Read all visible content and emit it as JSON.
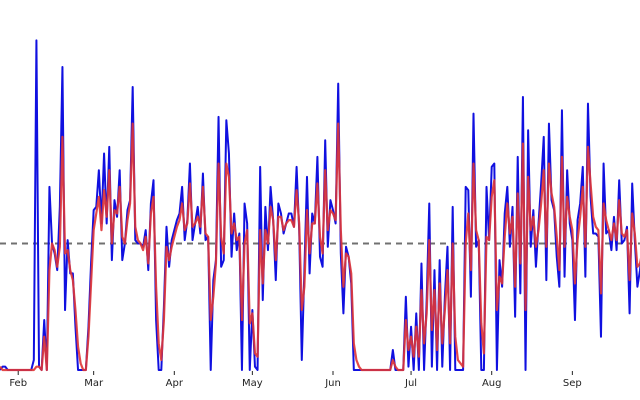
{
  "chart_data": {
    "type": "line",
    "title": "",
    "xlabel": "",
    "ylabel": "",
    "x_axis": {
      "start_date": "2020-01-25",
      "end_date": "2020-09-27",
      "tick_labels": [
        "Feb",
        "Mar",
        "Apr",
        "May",
        "Jun",
        "Jul",
        "Aug",
        "Sep"
      ],
      "tick_dates": [
        "2020-02-01",
        "2020-03-01",
        "2020-04-01",
        "2020-05-01",
        "2020-06-01",
        "2020-07-01",
        "2020-08-01",
        "2020-09-01"
      ]
    },
    "ylim": [
      0,
      100
    ],
    "grid": false,
    "legend": "none",
    "reference_line": {
      "value": 38,
      "style": "dashed",
      "color": "#707070"
    },
    "series": [
      {
        "color": "#1010e0",
        "x_start": "2020-01-25",
        "step_days": 1,
        "values": [
          0,
          1,
          1,
          0,
          0,
          0,
          0,
          0,
          0,
          0,
          0,
          0,
          0,
          3,
          99,
          1,
          0,
          15,
          0,
          55,
          38,
          35,
          30,
          49,
          91,
          18,
          39,
          29,
          29,
          13,
          0,
          0,
          0,
          0,
          13,
          32,
          48,
          49,
          60,
          44,
          65,
          44,
          67,
          33,
          51,
          46,
          60,
          33,
          38,
          48,
          51,
          85,
          39,
          38,
          38,
          37,
          42,
          30,
          50,
          57,
          15,
          0,
          0,
          19,
          43,
          31,
          39,
          42,
          45,
          47,
          55,
          39,
          45,
          62,
          39,
          44,
          49,
          41,
          59,
          39,
          40,
          0,
          27,
          33,
          76,
          31,
          33,
          75,
          65,
          34,
          47,
          36,
          41,
          0,
          50,
          44,
          0,
          18,
          1,
          0,
          61,
          21,
          49,
          36,
          55,
          45,
          27,
          50,
          47,
          41,
          44,
          47,
          47,
          43,
          61,
          42,
          3,
          30,
          58,
          29,
          47,
          44,
          64,
          34,
          31,
          69,
          37,
          51,
          48,
          44,
          86,
          35,
          17,
          37,
          34,
          26,
          0,
          0,
          0,
          0,
          0,
          0,
          0,
          0,
          0,
          0,
          0,
          0,
          0,
          0,
          0,
          6,
          0,
          0,
          0,
          0,
          22,
          1,
          13,
          0,
          17,
          0,
          32,
          0,
          21,
          50,
          1,
          30,
          0,
          33,
          1,
          22,
          37,
          0,
          49,
          0,
          0,
          0,
          0,
          55,
          54,
          22,
          77,
          37,
          39,
          0,
          0,
          55,
          39,
          61,
          62,
          0,
          33,
          25,
          47,
          55,
          37,
          49,
          16,
          64,
          23,
          82,
          0,
          72,
          37,
          48,
          31,
          44,
          56,
          70,
          27,
          74,
          51,
          48,
          34,
          25,
          78,
          28,
          60,
          44,
          39,
          15,
          45,
          50,
          61,
          28,
          80,
          52,
          41,
          41,
          40,
          10,
          62,
          41,
          42,
          36,
          46,
          36,
          57,
          38,
          39,
          43,
          17,
          56,
          39,
          25,
          30,
          38,
          38,
          62,
          45,
          42,
          40,
          28,
          34,
          32,
          32,
          39,
          68,
          37,
          35,
          34,
          9,
          0,
          5,
          14,
          19,
          62,
          73,
          52,
          25,
          46,
          49,
          33,
          0,
          36
        ]
      },
      {
        "color": "#e03535",
        "x_start": "2020-01-25",
        "step_days": 1,
        "values": [
          1,
          0,
          0,
          0,
          0,
          0,
          0,
          0,
          0,
          0,
          0,
          0,
          0,
          0,
          1,
          1,
          0,
          10,
          0,
          30,
          38,
          36,
          31,
          37,
          70,
          35,
          36,
          30,
          27,
          18,
          7,
          2,
          0,
          0,
          10,
          26,
          42,
          47,
          52,
          42,
          54,
          46,
          60,
          38,
          48,
          47,
          55,
          40,
          38,
          45,
          50,
          74,
          43,
          39,
          38,
          36,
          40,
          32,
          47,
          52,
          25,
          8,
          3,
          15,
          37,
          33,
          37,
          40,
          43,
          45,
          50,
          42,
          44,
          56,
          43,
          44,
          46,
          43,
          55,
          41,
          40,
          15,
          22,
          32,
          62,
          40,
          35,
          62,
          58,
          41,
          44,
          39,
          40,
          15,
          38,
          42,
          14,
          17,
          5,
          4,
          42,
          26,
          42,
          38,
          49,
          45,
          33,
          46,
          46,
          42,
          44,
          45,
          45,
          43,
          54,
          44,
          18,
          25,
          48,
          35,
          44,
          44,
          56,
          40,
          35,
          60,
          42,
          48,
          47,
          45,
          74,
          42,
          25,
          35,
          34,
          29,
          8,
          3,
          1,
          0,
          0,
          0,
          0,
          0,
          0,
          0,
          0,
          0,
          0,
          0,
          0,
          3,
          1,
          0,
          0,
          0,
          15,
          6,
          10,
          4,
          13,
          4,
          24,
          8,
          17,
          39,
          12,
          24,
          6,
          26,
          8,
          18,
          30,
          8,
          38,
          10,
          3,
          2,
          1,
          38,
          47,
          30,
          62,
          42,
          39,
          14,
          5,
          40,
          39,
          52,
          57,
          18,
          28,
          26,
          40,
          50,
          41,
          46,
          25,
          53,
          32,
          68,
          18,
          58,
          42,
          46,
          37,
          42,
          50,
          60,
          37,
          62,
          53,
          49,
          40,
          30,
          64,
          37,
          52,
          46,
          42,
          26,
          39,
          46,
          55,
          37,
          67,
          56,
          46,
          43,
          42,
          23,
          50,
          45,
          42,
          39,
          44,
          39,
          51,
          41,
          40,
          42,
          27,
          47,
          41,
          31,
          32,
          36,
          37,
          52,
          46,
          43,
          41,
          34,
          34,
          33,
          33,
          37,
          55,
          43,
          38,
          35,
          19,
          6,
          4,
          10,
          15,
          47,
          62,
          55,
          36,
          42,
          46,
          38,
          14,
          30
        ]
      }
    ]
  }
}
